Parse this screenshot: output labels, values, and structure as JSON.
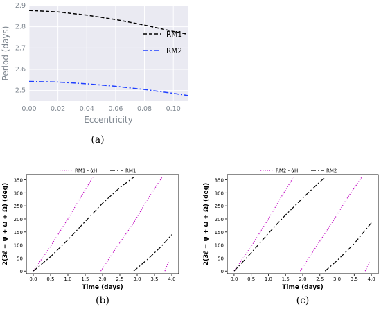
{
  "chart_data": [
    {
      "type": "line",
      "panel_label": "(a)",
      "xlabel": "Eccentricity",
      "ylabel": "Period (days)",
      "xlim": [
        0.0,
        0.11
      ],
      "ylim": [
        2.45,
        2.9
      ],
      "xticks": [
        "0.00",
        "0.02",
        "0.04",
        "0.06",
        "0.08",
        "0.10"
      ],
      "yticks": [
        "2.5",
        "2.6",
        "2.7",
        "2.8",
        "2.9"
      ],
      "legend_position": "right",
      "series": [
        {
          "name": "RM1",
          "color": "#000000",
          "style": "dashed",
          "x": [
            0.0,
            0.02,
            0.04,
            0.06,
            0.08,
            0.1,
            0.11
          ],
          "values": [
            2.877,
            2.87,
            2.855,
            2.834,
            2.808,
            2.778,
            2.765
          ]
        },
        {
          "name": "RM2",
          "color": "#1f3fff",
          "style": "dashdot",
          "x": [
            0.0,
            0.02,
            0.04,
            0.06,
            0.08,
            0.1,
            0.11
          ],
          "values": [
            2.543,
            2.54,
            2.532,
            2.52,
            2.505,
            2.487,
            2.477
          ]
        }
      ]
    },
    {
      "type": "line",
      "panel_label": "(b)",
      "xlabel": "Time (days)",
      "ylabel": "2(3ℓ − ψ + ω + Ω) (deg)",
      "xlim": [
        -0.2,
        4.2
      ],
      "ylim": [
        -10,
        370
      ],
      "xticks": [
        "0.0",
        "0.5",
        "1.0",
        "1.5",
        "2.0",
        "2.5",
        "3.0",
        "3.5",
        "4.0"
      ],
      "yticks": [
        "0",
        "50",
        "100",
        "150",
        "200",
        "250",
        "300",
        "350"
      ],
      "legend_position": "top",
      "series": [
        {
          "name": "RM1 - α̇H",
          "color": "#c000c0",
          "style": "dotted",
          "segments": [
            {
              "x": [
                0.0,
                0.5,
                1.0,
                1.4,
                1.72
              ],
              "values": [
                0,
                95,
                200,
                290,
                360
              ]
            },
            {
              "x": [
                1.95,
                2.4,
                2.9,
                3.3,
                3.72
              ],
              "values": [
                0,
                90,
                185,
                275,
                360
              ]
            },
            {
              "x": [
                3.8,
                3.9
              ],
              "values": [
                0,
                35
              ]
            }
          ]
        },
        {
          "name": "RM1",
          "color": "#000000",
          "style": "dashdot",
          "segments": [
            {
              "x": [
                0.0,
                0.5,
                1.0,
                1.5,
                2.0,
                2.5,
                2.9
              ],
              "values": [
                0,
                55,
                120,
                190,
                260,
                320,
                360
              ]
            },
            {
              "x": [
                2.9,
                3.3,
                3.7,
                4.0
              ],
              "values": [
                0,
                45,
                95,
                140
              ]
            }
          ]
        }
      ]
    },
    {
      "type": "line",
      "panel_label": "(c)",
      "xlabel": "Time (days)",
      "ylabel": "2(3ℓ − ψ + ω + Ω) (deg)",
      "xlim": [
        -0.2,
        4.2
      ],
      "ylim": [
        -10,
        370
      ],
      "xticks": [
        "0.0",
        "0.5",
        "1.0",
        "1.5",
        "2.0",
        "2.5",
        "3.0",
        "3.5",
        "4.0"
      ],
      "yticks": [
        "0",
        "50",
        "100",
        "150",
        "200",
        "250",
        "300",
        "350"
      ],
      "legend_position": "top",
      "series": [
        {
          "name": "RM2 - α̇H",
          "color": "#c000c0",
          "style": "dotted",
          "segments": [
            {
              "x": [
                0.0,
                0.5,
                1.0,
                1.4,
                1.73
              ],
              "values": [
                0,
                95,
                200,
                290,
                360
              ]
            },
            {
              "x": [
                1.93,
                2.4,
                2.9,
                3.3,
                3.72
              ],
              "values": [
                0,
                95,
                195,
                280,
                360
              ]
            },
            {
              "x": [
                3.82,
                3.95
              ],
              "values": [
                0,
                35
              ]
            }
          ]
        },
        {
          "name": "RM2",
          "color": "#000000",
          "style": "dashdot",
          "segments": [
            {
              "x": [
                0.0,
                0.5,
                1.0,
                1.5,
                2.0,
                2.4,
                2.65
              ],
              "values": [
                0,
                70,
                145,
                215,
                280,
                330,
                360
              ]
            },
            {
              "x": [
                2.65,
                3.0,
                3.5,
                4.0
              ],
              "values": [
                0,
                40,
                105,
                185
              ]
            }
          ]
        }
      ]
    }
  ]
}
